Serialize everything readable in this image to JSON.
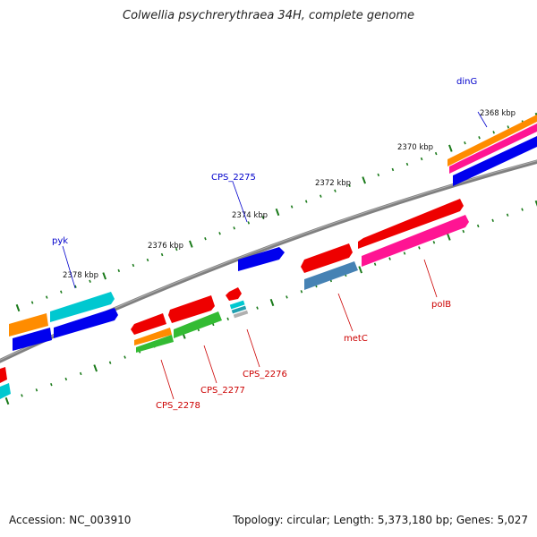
{
  "title": "Colwellia psychrerythraea 34H, complete genome",
  "footer": {
    "accession": "Accession: NC_003910",
    "summary": "Topology: circular; Length: 5,373,180 bp; Genes: 5,027"
  },
  "ticks": [
    "2368 kbp",
    "2370 kbp",
    "2372 kbp",
    "2374 kbp",
    "2376 kbp",
    "2378 kbp"
  ],
  "gene_labels": {
    "dinG": "dinG",
    "CPS_2275": "CPS_2275",
    "pyk": "pyk",
    "polB": "polB",
    "metC": "metC",
    "CPS_2276": "CPS_2276",
    "CPS_2277": "CPS_2277",
    "CPS_2278": "CPS_2278"
  },
  "colors": {
    "backbone": "#808080",
    "tick_mark": "#1a7a1a",
    "forward_label": "#0000cc",
    "reverse_label": "#cc0000",
    "red": "#ee0000",
    "orange": "#ff8c00",
    "magenta": "#ff1493",
    "blue": "#0000ee",
    "cyan": "#00c8d0",
    "green": "#33bb33",
    "steelblue": "#4682b4"
  }
}
